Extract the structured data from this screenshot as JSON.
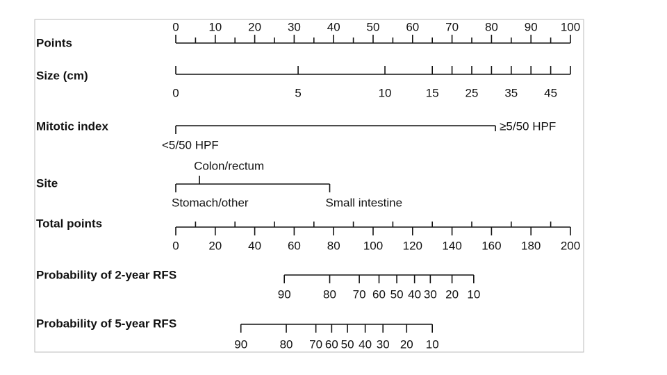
{
  "rows": [
    {
      "label": "Points",
      "ticks": [
        0,
        10,
        20,
        30,
        40,
        50,
        60,
        70,
        80,
        90,
        100
      ]
    },
    {
      "label": "Size (cm)",
      "ticks": [
        {
          "label": "0",
          "points": 0
        },
        {
          "label": "5",
          "points": 31
        },
        {
          "label": "10",
          "points": 53
        },
        {
          "label": "15",
          "points": 65
        },
        {
          "points": 70
        },
        {
          "label": "25",
          "points": 75
        },
        {
          "points": 80
        },
        {
          "label": "35",
          "points": 85
        },
        {
          "points": 90
        },
        {
          "label": "45",
          "points": 95
        },
        {
          "points": 100
        }
      ]
    },
    {
      "label": "Mitotic index",
      "ticks": [
        {
          "label": "<5/50 HPF",
          "points": 0
        },
        {
          "label": "≥5/50 HPF",
          "points": 81
        }
      ]
    },
    {
      "label": "Site",
      "ticks": [
        {
          "label": "Stomach/other",
          "points": 0
        },
        {
          "label": "Colon/rectum",
          "points": 6
        },
        {
          "label": "Small intestine",
          "points": 39
        }
      ]
    },
    {
      "label": "Total points",
      "ticks": [
        0,
        20,
        40,
        60,
        80,
        100,
        120,
        140,
        160,
        180,
        200
      ]
    },
    {
      "label": "Probability of 2-year RFS",
      "ticks": [
        {
          "label": "90",
          "total_points": 55
        },
        {
          "label": "80",
          "total_points": 78
        },
        {
          "label": "70",
          "total_points": 93
        },
        {
          "label": "60",
          "total_points": 103
        },
        {
          "label": "50",
          "total_points": 112
        },
        {
          "label": "40",
          "total_points": 121
        },
        {
          "label": "30",
          "total_points": 129
        },
        {
          "label": "20",
          "total_points": 140
        },
        {
          "label": "10",
          "total_points": 151
        }
      ]
    },
    {
      "label": "Probability of 5-year RFS",
      "ticks": [
        {
          "label": "90",
          "total_points": 33
        },
        {
          "label": "80",
          "total_points": 56
        },
        {
          "label": "70",
          "total_points": 71
        },
        {
          "label": "60",
          "total_points": 79
        },
        {
          "label": "50",
          "total_points": 87
        },
        {
          "label": "40",
          "total_points": 96
        },
        {
          "label": "30",
          "total_points": 105
        },
        {
          "label": "20",
          "total_points": 117
        },
        {
          "label": "10",
          "total_points": 130
        }
      ]
    }
  ]
}
